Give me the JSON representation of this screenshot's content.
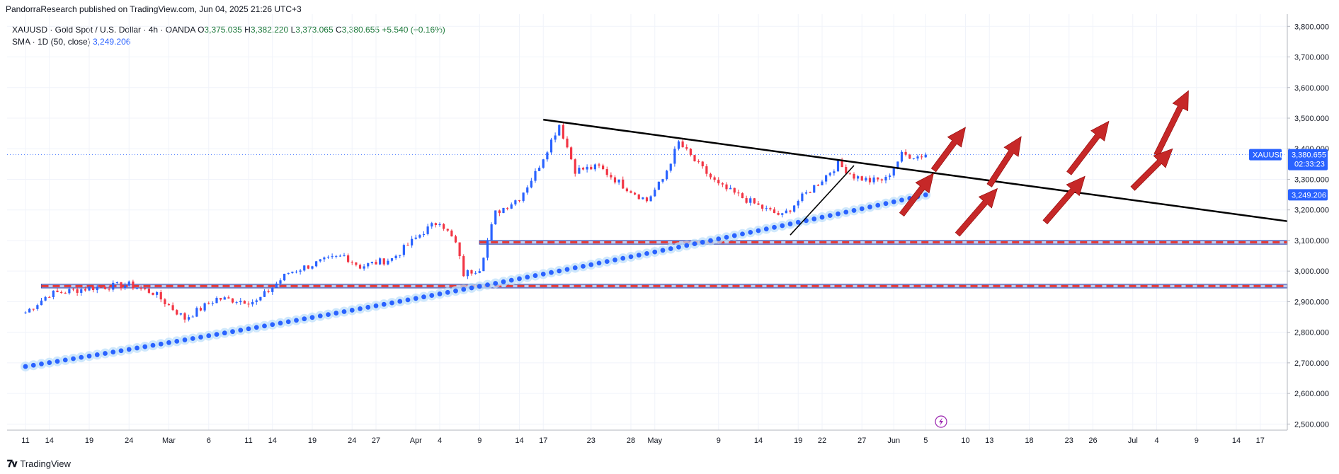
{
  "header": {
    "published": "PandorraResearch published on TradingView.com, Jun 04, 2025 21:26 UTC+3"
  },
  "legend": {
    "symbol": "XAUUSD · Gold Spot / U.S. Dollar · 4h · OANDA",
    "o_label": "O",
    "o": "3,375.035",
    "h_label": "H",
    "h": "3,382.220",
    "l_label": "L",
    "l": "3,373.065",
    "c_label": "C",
    "c": "3,380.655",
    "change": "+5.540 (+0.16%)",
    "sma_label": "SMA · 1D (50, close)",
    "sma_value": "3,249.206"
  },
  "brand": {
    "name": "TradingView"
  },
  "price_tag": {
    "symbol": "XAUUSD",
    "price": "3,380.655",
    "countdown": "02:33:23"
  },
  "sma_tag": {
    "price": "3,249.206"
  },
  "colors": {
    "up": "#2962ff",
    "down": "#f23645",
    "sma": "#2962ff",
    "zone": "#3f51b5",
    "arrow": "#c62828",
    "tag_blue": "#2962ff",
    "tag_dark": "#131722"
  },
  "chart_data": {
    "type": "candlestick",
    "timeframe": "4h",
    "ylim": [
      2480,
      3840
    ],
    "y_ticks": [
      "3,800.000",
      "3,700.000",
      "3,600.000",
      "3,500.000",
      "3,400.000",
      "3,300.000",
      "3,200.000",
      "3,100.000",
      "3,000.000",
      "2,900.000",
      "2,800.000",
      "2,700.000",
      "2,600.000",
      "2,500.000"
    ],
    "y_tick_values": [
      3800,
      3700,
      3600,
      3500,
      3400,
      3300,
      3200,
      3100,
      3000,
      2900,
      2800,
      2700,
      2600,
      2500
    ],
    "x_ticks": [
      "11",
      "14",
      "19",
      "24",
      "Mar",
      "6",
      "11",
      "14",
      "19",
      "24",
      "27",
      "Apr",
      "4",
      "9",
      "14",
      "17",
      "23",
      "28",
      "May",
      "9",
      "14",
      "19",
      "22",
      "27",
      "Jun",
      "5",
      "10",
      "13",
      "18",
      "23",
      "26",
      "Jul",
      "4",
      "9",
      "14",
      "17"
    ],
    "x_tick_day_index": [
      0,
      3,
      8,
      13,
      18,
      23,
      28,
      31,
      36,
      41,
      44,
      49,
      52,
      57,
      62,
      65,
      71,
      76,
      79,
      87,
      92,
      97,
      100,
      105,
      109,
      113,
      118,
      121,
      126,
      131,
      134,
      139,
      142,
      147,
      152,
      155
    ],
    "path_keypoints": [
      {
        "i": 0,
        "p": 2865
      },
      {
        "i": 3,
        "p": 2925
      },
      {
        "i": 8,
        "p": 2945
      },
      {
        "i": 13,
        "p": 2955
      },
      {
        "i": 16,
        "p": 2930
      },
      {
        "i": 20,
        "p": 2845
      },
      {
        "i": 24,
        "p": 2910
      },
      {
        "i": 29,
        "p": 2900
      },
      {
        "i": 33,
        "p": 2995
      },
      {
        "i": 37,
        "p": 3030
      },
      {
        "i": 40,
        "p": 3050
      },
      {
        "i": 42,
        "p": 3015
      },
      {
        "i": 46,
        "p": 3040
      },
      {
        "i": 50,
        "p": 3130
      },
      {
        "i": 52,
        "p": 3165
      },
      {
        "i": 54,
        "p": 3090
      },
      {
        "i": 55,
        "p": 2990
      },
      {
        "i": 57,
        "p": 3010
      },
      {
        "i": 59,
        "p": 3190
      },
      {
        "i": 62,
        "p": 3240
      },
      {
        "i": 64,
        "p": 3320
      },
      {
        "i": 67,
        "p": 3480
      },
      {
        "i": 69,
        "p": 3330
      },
      {
        "i": 72,
        "p": 3340
      },
      {
        "i": 75,
        "p": 3280
      },
      {
        "i": 78,
        "p": 3230
      },
      {
        "i": 80,
        "p": 3300
      },
      {
        "i": 82,
        "p": 3420
      },
      {
        "i": 84,
        "p": 3360
      },
      {
        "i": 87,
        "p": 3280
      },
      {
        "i": 90,
        "p": 3240
      },
      {
        "i": 93,
        "p": 3200
      },
      {
        "i": 95,
        "p": 3180
      },
      {
        "i": 97,
        "p": 3230
      },
      {
        "i": 100,
        "p": 3300
      },
      {
        "i": 102,
        "p": 3350
      },
      {
        "i": 104,
        "p": 3310
      },
      {
        "i": 106,
        "p": 3295
      },
      {
        "i": 108,
        "p": 3300
      },
      {
        "i": 110,
        "p": 3380
      },
      {
        "i": 112,
        "p": 3375
      },
      {
        "i": 113,
        "p": 3381
      }
    ],
    "last_price": 3380.655,
    "sma_50d": {
      "name": "SMA · 1D (50, close)",
      "start": {
        "i": 0,
        "p": 2688
      },
      "end": {
        "i": 113,
        "p": 3249.206
      }
    },
    "annotations": {
      "descending_trendline": [
        {
          "i": 65,
          "p": 3495
        },
        {
          "i": 157,
          "p": 3168
        }
      ],
      "rising_trendline": [
        {
          "i": 96,
          "p": 3118
        },
        {
          "i": 104,
          "p": 3345
        }
      ],
      "support_zones": [
        {
          "low": 3088,
          "high": 3100,
          "start_i": 57
        },
        {
          "low": 2945,
          "high": 2957,
          "start_i": 2
        }
      ],
      "arrows": [
        {
          "from": {
            "i": 114,
            "p": 3330
          },
          "to": {
            "i": 118,
            "p": 3470
          }
        },
        {
          "from": {
            "i": 110,
            "p": 3185
          },
          "to": {
            "i": 114,
            "p": 3320
          }
        },
        {
          "from": {
            "i": 121,
            "p": 3280
          },
          "to": {
            "i": 125,
            "p": 3440
          }
        },
        {
          "from": {
            "i": 117,
            "p": 3120
          },
          "to": {
            "i": 122,
            "p": 3270
          }
        },
        {
          "from": {
            "i": 131,
            "p": 3320
          },
          "to": {
            "i": 136,
            "p": 3490
          }
        },
        {
          "from": {
            "i": 128,
            "p": 3160
          },
          "to": {
            "i": 133,
            "p": 3310
          }
        },
        {
          "from": {
            "i": 142,
            "p": 3380
          },
          "to": {
            "i": 146,
            "p": 3590
          }
        },
        {
          "from": {
            "i": 139,
            "p": 3270
          },
          "to": {
            "i": 144,
            "p": 3400
          }
        }
      ]
    }
  }
}
